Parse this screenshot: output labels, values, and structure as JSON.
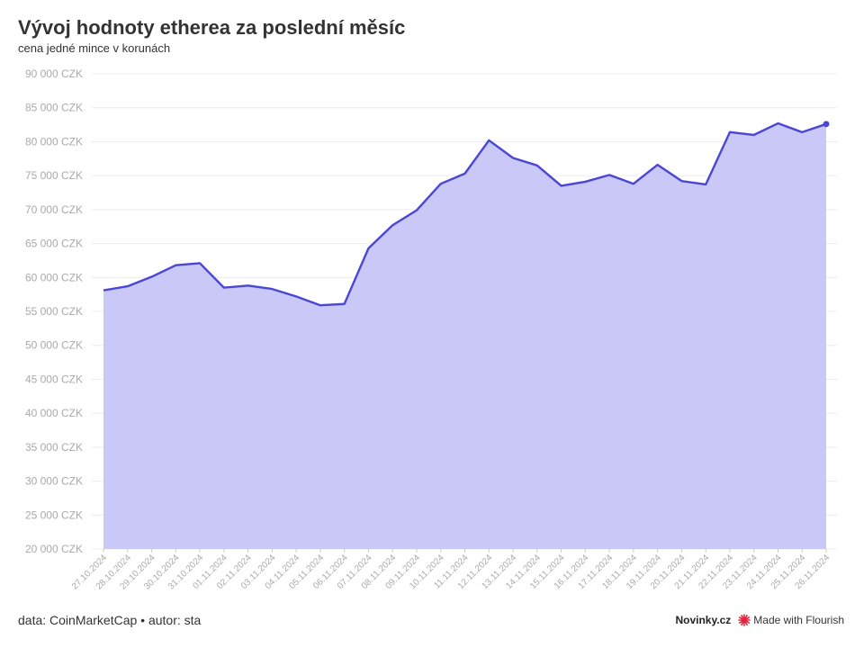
{
  "chart_data": {
    "type": "area",
    "title": "Vývoj hodnoty etherea za poslední měsíc",
    "subtitle": "cena jedné mince v korunách",
    "x": [
      "27.10.2024",
      "28.10.2024",
      "29.10.2024",
      "30.10.2024",
      "31.10.2024",
      "01.11.2024",
      "02.11.2024",
      "03.11.2024",
      "04.11.2024",
      "05.11.2024",
      "06.11.2024",
      "07.11.2024",
      "08.11.2024",
      "09.11.2024",
      "10.11.2024",
      "11.11.2024",
      "12.11.2024",
      "13.11.2024",
      "14.11.2024",
      "15.11.2024",
      "16.11.2024",
      "17.11.2024",
      "18.11.2024",
      "19.11.2024",
      "20.11.2024",
      "21.11.2024",
      "22.11.2024",
      "23.11.2024",
      "24.11.2024",
      "25.11.2024",
      "26.11.2024"
    ],
    "values": [
      58100,
      58700,
      60100,
      61800,
      62100,
      58500,
      58800,
      58300,
      57200,
      55900,
      56100,
      64300,
      67700,
      69900,
      73800,
      75300,
      80200,
      77600,
      76500,
      73500,
      74100,
      75100,
      73800,
      76600,
      74200,
      73700,
      81400,
      81000,
      82700,
      81400,
      82600
    ],
    "ylim": [
      20000,
      90000
    ],
    "ytick_step": 5000,
    "ytick_suffix": " CZK",
    "grid": true,
    "legend": "none",
    "line_color": "#4a46d6",
    "fill_color": "#c9c8f6"
  },
  "footer": {
    "source": "data: CoinMarketCap • autor: sta",
    "brand": "Novinky.cz",
    "made_with": "Made with Flourish",
    "flourish_icon": "flourish-star-icon",
    "flourish_color": "#e0243f"
  }
}
